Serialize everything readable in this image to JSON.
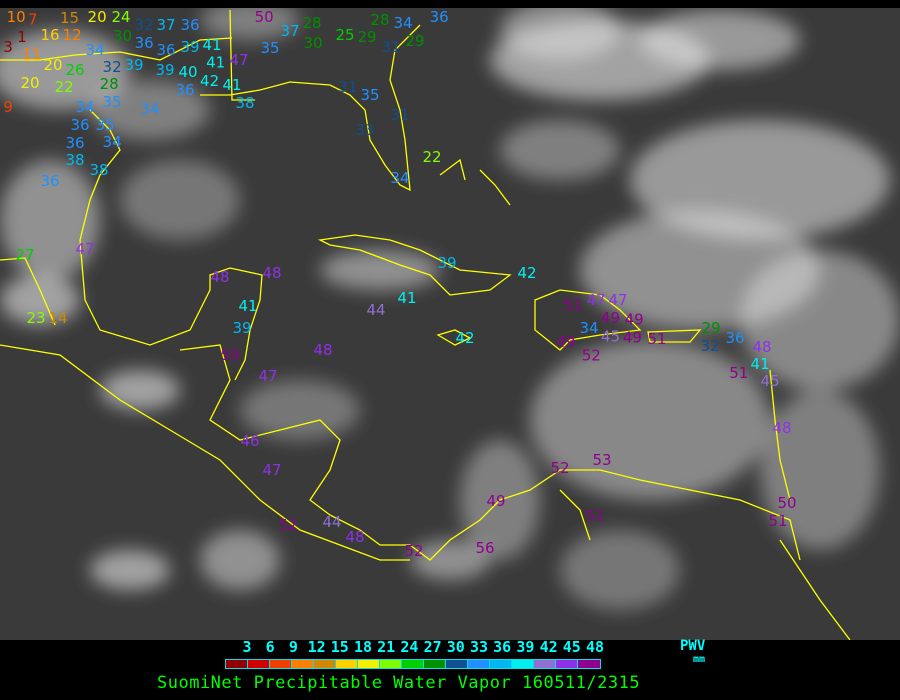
{
  "map": {
    "type": "satellite-infrared",
    "coastline_color": "#ffff00",
    "background": "#3a3a3a",
    "stations": [
      {
        "v": "10"
      },
      {
        "v": "7"
      },
      {
        "v": "15"
      },
      {
        "v": "20"
      },
      {
        "v": "24"
      },
      {
        "v": "30"
      },
      {
        "v": "32"
      },
      {
        "v": "37"
      },
      {
        "v": "36"
      },
      {
        "v": "3"
      },
      {
        "v": "1"
      },
      {
        "v": "16"
      },
      {
        "v": "12"
      },
      {
        "v": "11"
      },
      {
        "v": "34"
      },
      {
        "v": "36"
      },
      {
        "v": "36"
      },
      {
        "v": "39"
      },
      {
        "v": "41"
      },
      {
        "v": "41"
      },
      {
        "v": "47"
      },
      {
        "v": "20"
      },
      {
        "v": "26"
      },
      {
        "v": "32"
      },
      {
        "v": "39"
      },
      {
        "v": "39"
      },
      {
        "v": "40"
      },
      {
        "v": "42"
      },
      {
        "v": "20"
      },
      {
        "v": "22"
      },
      {
        "v": "28"
      },
      {
        "v": "35"
      },
      {
        "v": "41"
      },
      {
        "v": "36"
      },
      {
        "v": "34"
      },
      {
        "v": "38"
      },
      {
        "v": "9"
      },
      {
        "v": "34"
      },
      {
        "v": "36"
      },
      {
        "v": "35"
      },
      {
        "v": "34"
      },
      {
        "v": "36"
      },
      {
        "v": "38"
      },
      {
        "v": "38"
      },
      {
        "v": "36"
      },
      {
        "v": "50"
      },
      {
        "v": "37"
      },
      {
        "v": "28"
      },
      {
        "v": "30"
      },
      {
        "v": "35"
      },
      {
        "v": "25"
      },
      {
        "v": "29"
      },
      {
        "v": "28"
      },
      {
        "v": "31"
      },
      {
        "v": "34"
      },
      {
        "v": "36"
      },
      {
        "v": "29"
      },
      {
        "v": "35"
      },
      {
        "v": "31"
      },
      {
        "v": "33"
      },
      {
        "v": "31"
      },
      {
        "v": "22"
      },
      {
        "v": "34"
      },
      {
        "v": "27"
      },
      {
        "v": "47"
      },
      {
        "v": "23"
      },
      {
        "v": "14"
      },
      {
        "v": "48"
      },
      {
        "v": "48"
      },
      {
        "v": "41"
      },
      {
        "v": "39"
      },
      {
        "v": "59"
      },
      {
        "v": "48"
      },
      {
        "v": "47"
      },
      {
        "v": "44"
      },
      {
        "v": "41"
      },
      {
        "v": "39"
      },
      {
        "v": "42"
      },
      {
        "v": "42"
      },
      {
        "v": "51"
      },
      {
        "v": "47"
      },
      {
        "v": "47"
      },
      {
        "v": "49"
      },
      {
        "v": "49"
      },
      {
        "v": "34"
      },
      {
        "v": "45"
      },
      {
        "v": "49"
      },
      {
        "v": "49"
      },
      {
        "v": "52"
      },
      {
        "v": "51"
      },
      {
        "v": "29"
      },
      {
        "v": "32"
      },
      {
        "v": "36"
      },
      {
        "v": "48"
      },
      {
        "v": "41"
      },
      {
        "v": "51"
      },
      {
        "v": "45"
      },
      {
        "v": "48"
      },
      {
        "v": "46"
      },
      {
        "v": "47"
      },
      {
        "v": "52"
      },
      {
        "v": "44"
      },
      {
        "v": "48"
      },
      {
        "v": "52"
      },
      {
        "v": "56"
      },
      {
        "v": "49"
      },
      {
        "v": "52"
      },
      {
        "v": "53"
      },
      {
        "v": "51"
      },
      {
        "v": "50"
      },
      {
        "v": "51"
      }
    ]
  },
  "legend": {
    "ticks": [
      "3",
      "6",
      "9",
      "12",
      "15",
      "18",
      "21",
      "24",
      "27",
      "30",
      "33",
      "36",
      "39",
      "42",
      "45",
      "48"
    ],
    "colors": [
      "#900000",
      "#d00000",
      "#f04000",
      "#ff8000",
      "#d08800",
      "#ffd000",
      "#f0f000",
      "#80ff00",
      "#00d000",
      "#009000",
      "#105090",
      "#2090ff",
      "#00b8f0",
      "#00f0f0",
      "#9070d0",
      "#9030e8",
      "#900090"
    ],
    "unit_label": "PWV",
    "unit": "mm"
  },
  "caption": "SuomiNet Precipitable Water Vapor 160511/2315"
}
